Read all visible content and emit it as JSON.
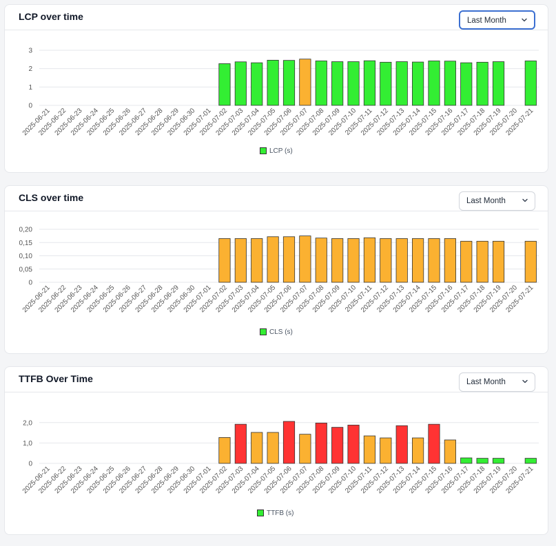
{
  "colors": {
    "good": "#33ee33",
    "needs_improvement": "#fbb131",
    "poor": "#ff3333",
    "legend_swatch": "#33ee33"
  },
  "dates": [
    "2025-06-21",
    "2025-06-22",
    "2025-06-23",
    "2025-06-24",
    "2025-06-25",
    "2025-06-26",
    "2025-06-27",
    "2025-06-28",
    "2025-06-29",
    "2025-06-30",
    "2025-07-01",
    "2025-07-02",
    "2025-07-03",
    "2025-07-04",
    "2025-07-05",
    "2025-07-06",
    "2025-07-07",
    "2025-07-08",
    "2025-07-09",
    "2025-07-10",
    "2025-07-11",
    "2025-07-12",
    "2025-07-13",
    "2025-07-14",
    "2025-07-15",
    "2025-07-16",
    "2025-07-17",
    "2025-07-18",
    "2025-07-19",
    "2025-07-20",
    "2025-07-21"
  ],
  "cards": [
    {
      "title": "LCP over time",
      "select": {
        "value": "Last Month",
        "icon": "chevron-down-icon"
      },
      "legend": "LCP (s)"
    },
    {
      "title": "CLS over time",
      "select": {
        "value": "Last Month",
        "icon": "chevron-down-icon"
      },
      "legend": "CLS (s)"
    },
    {
      "title": "TTFB Over Time",
      "select": {
        "value": "Last Month",
        "icon": "chevron-down-icon"
      },
      "legend": "TTFB (s)"
    }
  ],
  "chart_data": [
    {
      "type": "bar",
      "categories": [
        "2025-06-21",
        "2025-06-22",
        "2025-06-23",
        "2025-06-24",
        "2025-06-25",
        "2025-06-26",
        "2025-06-27",
        "2025-06-28",
        "2025-06-29",
        "2025-06-30",
        "2025-07-01",
        "2025-07-02",
        "2025-07-03",
        "2025-07-04",
        "2025-07-05",
        "2025-07-06",
        "2025-07-07",
        "2025-07-08",
        "2025-07-09",
        "2025-07-10",
        "2025-07-11",
        "2025-07-12",
        "2025-07-13",
        "2025-07-14",
        "2025-07-15",
        "2025-07-16",
        "2025-07-17",
        "2025-07-18",
        "2025-07-19",
        "2025-07-20",
        "2025-07-21"
      ],
      "series": [
        {
          "name": "LCP (s)",
          "values": [
            null,
            null,
            null,
            null,
            null,
            null,
            null,
            null,
            null,
            null,
            null,
            2.27,
            2.37,
            2.32,
            2.46,
            2.45,
            2.52,
            2.42,
            2.38,
            2.38,
            2.43,
            2.35,
            2.38,
            2.36,
            2.42,
            2.41,
            2.32,
            2.35,
            2.38,
            null,
            2.42
          ]
        }
      ],
      "bar_status": [
        null,
        null,
        null,
        null,
        null,
        null,
        null,
        null,
        null,
        null,
        null,
        "good",
        "good",
        "good",
        "good",
        "good",
        "needs_improvement",
        "good",
        "good",
        "good",
        "good",
        "good",
        "good",
        "good",
        "good",
        "good",
        "good",
        "good",
        "good",
        null,
        "good"
      ],
      "ylim": [
        0,
        3
      ],
      "yticks": [
        0,
        1,
        2,
        3
      ],
      "ytick_labels": [
        "0",
        "1",
        "2",
        "3"
      ],
      "grid": true,
      "legend_position": "bottom"
    },
    {
      "type": "bar",
      "categories": [
        "2025-06-21",
        "2025-06-22",
        "2025-06-23",
        "2025-06-24",
        "2025-06-25",
        "2025-06-26",
        "2025-06-27",
        "2025-06-28",
        "2025-06-29",
        "2025-06-30",
        "2025-07-01",
        "2025-07-02",
        "2025-07-03",
        "2025-07-04",
        "2025-07-05",
        "2025-07-06",
        "2025-07-07",
        "2025-07-08",
        "2025-07-09",
        "2025-07-10",
        "2025-07-11",
        "2025-07-12",
        "2025-07-13",
        "2025-07-14",
        "2025-07-15",
        "2025-07-16",
        "2025-07-17",
        "2025-07-18",
        "2025-07-19",
        "2025-07-20",
        "2025-07-21"
      ],
      "series": [
        {
          "name": "CLS (s)",
          "values": [
            null,
            null,
            null,
            null,
            null,
            null,
            null,
            null,
            null,
            null,
            null,
            0.165,
            0.165,
            0.165,
            0.172,
            0.172,
            0.175,
            0.167,
            0.165,
            0.165,
            0.168,
            0.165,
            0.165,
            0.165,
            0.165,
            0.165,
            0.155,
            0.155,
            0.155,
            null,
            0.155
          ]
        }
      ],
      "bar_status": [
        null,
        null,
        null,
        null,
        null,
        null,
        null,
        null,
        null,
        null,
        null,
        "needs_improvement",
        "needs_improvement",
        "needs_improvement",
        "needs_improvement",
        "needs_improvement",
        "needs_improvement",
        "needs_improvement",
        "needs_improvement",
        "needs_improvement",
        "needs_improvement",
        "needs_improvement",
        "needs_improvement",
        "needs_improvement",
        "needs_improvement",
        "needs_improvement",
        "needs_improvement",
        "needs_improvement",
        "needs_improvement",
        null,
        "needs_improvement"
      ],
      "ylim": [
        0,
        0.2
      ],
      "yticks": [
        0,
        0.05,
        0.1,
        0.15,
        0.2
      ],
      "ytick_labels": [
        "0",
        "0,05",
        "0,10",
        "0,15",
        "0,20"
      ],
      "grid": true,
      "legend_position": "bottom"
    },
    {
      "type": "bar",
      "categories": [
        "2025-06-21",
        "2025-06-22",
        "2025-06-23",
        "2025-06-24",
        "2025-06-25",
        "2025-06-26",
        "2025-06-27",
        "2025-06-28",
        "2025-06-29",
        "2025-06-30",
        "2025-07-01",
        "2025-07-02",
        "2025-07-03",
        "2025-07-04",
        "2025-07-05",
        "2025-07-06",
        "2025-07-07",
        "2025-07-08",
        "2025-07-09",
        "2025-07-10",
        "2025-07-11",
        "2025-07-12",
        "2025-07-13",
        "2025-07-14",
        "2025-07-15",
        "2025-07-16",
        "2025-07-17",
        "2025-07-18",
        "2025-07-19",
        "2025-07-20",
        "2025-07-21"
      ],
      "series": [
        {
          "name": "TTFB (s)",
          "values": [
            null,
            null,
            null,
            null,
            null,
            null,
            null,
            null,
            null,
            null,
            null,
            1.27,
            1.92,
            1.52,
            1.52,
            2.06,
            1.43,
            1.98,
            1.77,
            1.88,
            1.35,
            1.25,
            1.85,
            1.25,
            1.92,
            1.15,
            0.27,
            0.25,
            0.25,
            null,
            0.25
          ]
        }
      ],
      "bar_status": [
        null,
        null,
        null,
        null,
        null,
        null,
        null,
        null,
        null,
        null,
        null,
        "needs_improvement",
        "poor",
        "needs_improvement",
        "needs_improvement",
        "poor",
        "needs_improvement",
        "poor",
        "poor",
        "poor",
        "needs_improvement",
        "needs_improvement",
        "poor",
        "needs_improvement",
        "poor",
        "needs_improvement",
        "good",
        "good",
        "good",
        null,
        "good"
      ],
      "ylim": [
        0,
        2.5
      ],
      "yticks": [
        0,
        1,
        2
      ],
      "ytick_labels": [
        "0",
        "1,0",
        "2,0"
      ],
      "grid": true,
      "legend_position": "bottom"
    }
  ]
}
